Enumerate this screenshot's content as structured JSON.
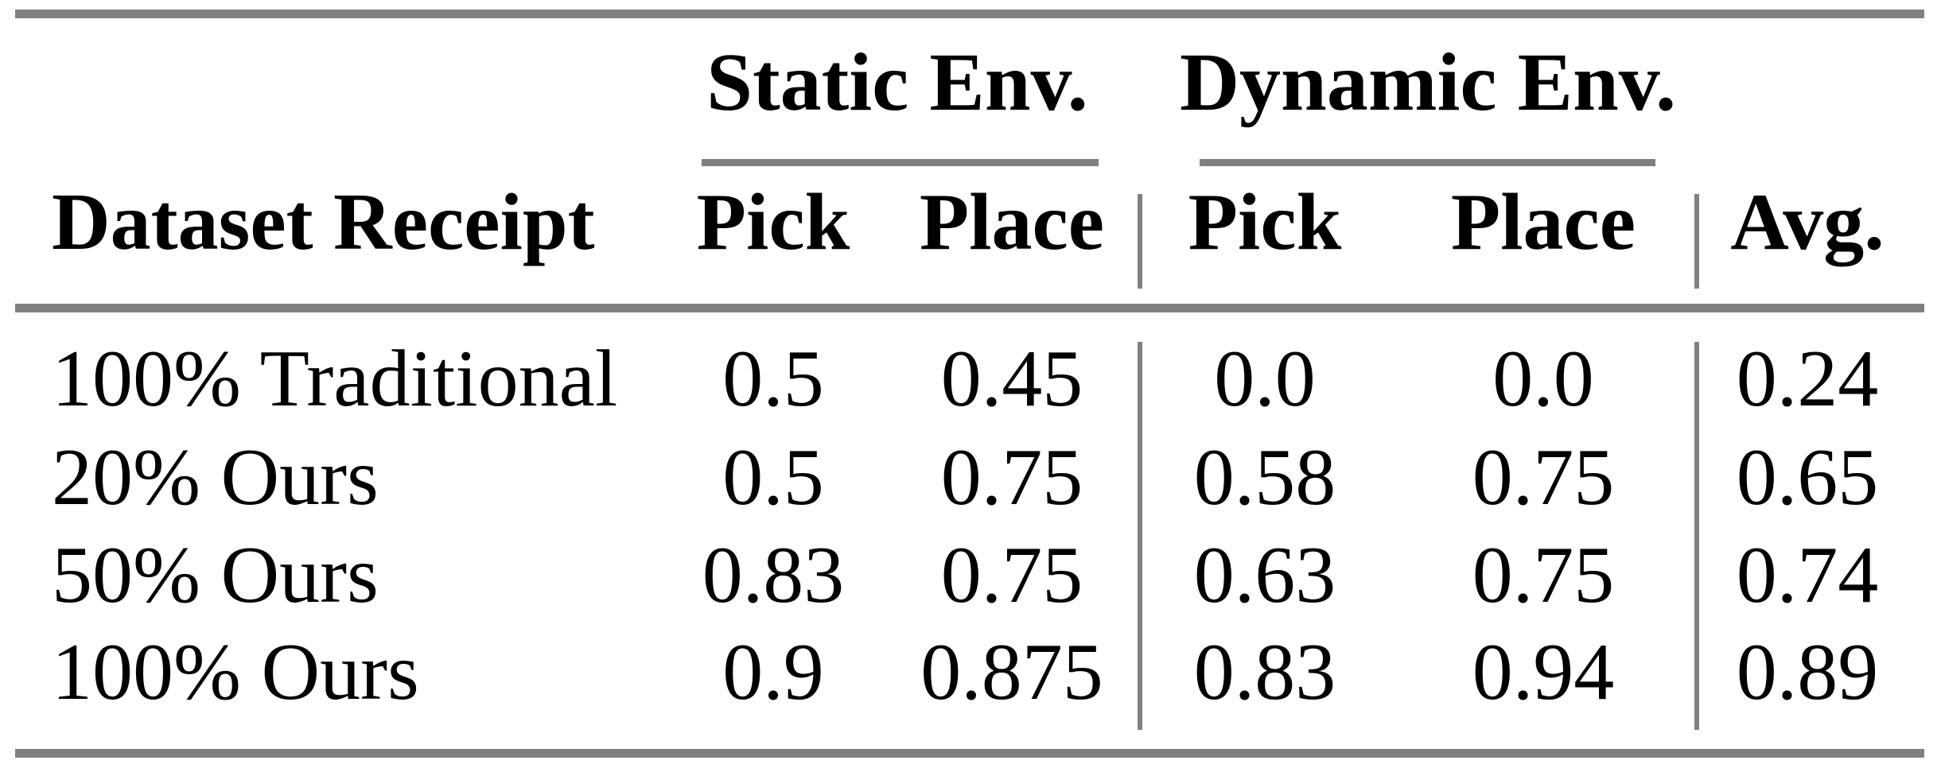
{
  "colors": {
    "rule": "#808080",
    "text": "#000000",
    "background": "#ffffff"
  },
  "table": {
    "groups": {
      "static": "Static Env.",
      "dynamic": "Dynamic Env."
    },
    "columns": {
      "row_header": "Dataset Receipt",
      "static_pick": "Pick",
      "static_place": "Place",
      "dynamic_pick": "Pick",
      "dynamic_place": "Place",
      "avg": "Avg."
    },
    "rows": [
      {
        "label": "100% Traditional",
        "values": [
          "0.5",
          "0.45",
          "0.0",
          "0.0",
          "0.24"
        ]
      },
      {
        "label": "20% Ours",
        "values": [
          "0.5",
          "0.75",
          "0.58",
          "0.75",
          "0.65"
        ]
      },
      {
        "label": "50% Ours",
        "values": [
          "0.83",
          "0.75",
          "0.63",
          "0.75",
          "0.74"
        ]
      },
      {
        "label": "100% Ours",
        "values": [
          "0.9",
          "0.875",
          "0.83",
          "0.94",
          "0.89"
        ]
      }
    ]
  },
  "chart_data": {
    "type": "table",
    "title": "",
    "column_groups": [
      "Static Env.",
      "Dynamic Env."
    ],
    "columns": [
      "Dataset Receipt",
      "Static Pick",
      "Static Place",
      "Dynamic Pick",
      "Dynamic Place",
      "Avg."
    ],
    "rows": [
      [
        "100% Traditional",
        0.5,
        0.45,
        0.0,
        0.0,
        0.24
      ],
      [
        "20% Ours",
        0.5,
        0.75,
        0.58,
        0.75,
        0.65
      ],
      [
        "50% Ours",
        0.83,
        0.75,
        0.63,
        0.75,
        0.74
      ],
      [
        "100% Ours",
        0.9,
        0.875,
        0.83,
        0.94,
        0.89
      ]
    ]
  }
}
